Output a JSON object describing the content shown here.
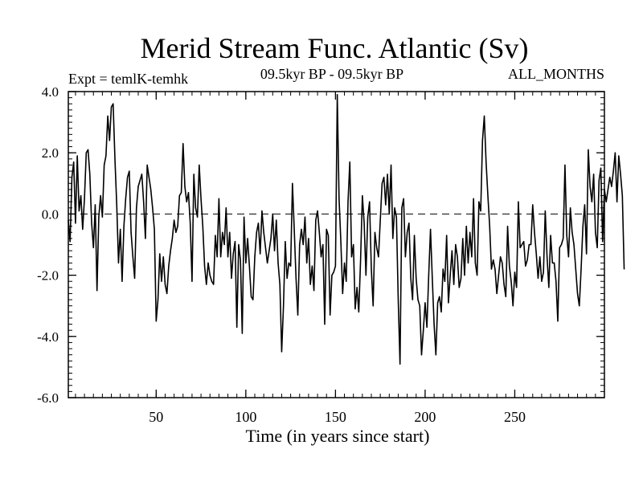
{
  "chart_data": {
    "type": "line",
    "title": "Merid Stream Func. Atlantic (Sv)",
    "subtitle": "09.5kyr BP - 09.5kyr BP",
    "experiment": "Expt = temlK-temhk",
    "period": "ALL_MONTHS",
    "xlabel": "Time (in years since start)",
    "ylabel": "",
    "xlim": [
      1,
      300
    ],
    "ylim": [
      -6.0,
      4.0
    ],
    "x_ticks": [
      50,
      100,
      150,
      200,
      250
    ],
    "x_tick_labels": [
      "50",
      "100",
      "150",
      "200",
      "250"
    ],
    "y_ticks": [
      -6.0,
      -4.0,
      -2.0,
      0.0,
      2.0,
      4.0
    ],
    "y_tick_labels": [
      "-6.0",
      "-4.0",
      "-2.0",
      "0.0",
      "2.0",
      "4.0"
    ],
    "zero_line": {
      "value": 0.0,
      "style": "dashed"
    },
    "grid": false,
    "series": [
      {
        "name": "Merid Stream Func. Atlantic",
        "color": "#000000",
        "x_start": 1,
        "x_step": 1,
        "values": [
          -0.2,
          -0.9,
          1.2,
          1.7,
          -0.3,
          1.9,
          0.1,
          0.6,
          -0.5,
          0.5,
          2.0,
          2.1,
          1.3,
          -0.3,
          -1.1,
          0.3,
          -2.5,
          -0.1,
          0.6,
          -0.1,
          1.6,
          1.9,
          3.2,
          2.4,
          3.5,
          3.6,
          1.8,
          0.3,
          -1.6,
          -0.5,
          -2.2,
          -0.4,
          0.5,
          1.2,
          1.4,
          -0.6,
          -1.4,
          -2.1,
          0.2,
          0.9,
          1.1,
          1.3,
          0.4,
          -0.8,
          1.6,
          1.2,
          0.8,
          0.2,
          -0.5,
          -3.5,
          -2.8,
          -1.3,
          -2.2,
          -1.4,
          -2.3,
          -2.6,
          -1.7,
          -1.2,
          -0.8,
          -0.2,
          -0.6,
          -0.4,
          0.6,
          0.7,
          2.3,
          0.9,
          0.4,
          0.7,
          -0.3,
          -2.2,
          1.3,
          0.2,
          -0.1,
          1.6,
          0.5,
          -0.4,
          -1.7,
          -2.3,
          -1.6,
          -2.0,
          -2.2,
          -2.3,
          -0.7,
          -1.4,
          0.5,
          -1.4,
          -0.6,
          -1.0,
          0.2,
          -1.4,
          -0.6,
          -2.1,
          -1.3,
          -0.9,
          -3.7,
          -1.0,
          -1.5,
          -3.9,
          -0.1,
          -1.6,
          -0.8,
          -1.7,
          -2.7,
          -2.8,
          -1.4,
          -0.6,
          -0.3,
          -1.3,
          0.1,
          -0.6,
          -1.1,
          -1.6,
          -1.2,
          -0.8,
          0.0,
          -1.2,
          -0.2,
          -1.6,
          -2.3,
          -4.5,
          -3.0,
          -0.9,
          -2.1,
          -1.6,
          -1.7,
          1.0,
          -0.5,
          -2.1,
          -3.3,
          -1.0,
          -0.5,
          -1.0,
          -0.1,
          -1.6,
          -0.8,
          -2.3,
          -1.7,
          -2.5,
          -0.2,
          0.1,
          -0.6,
          -1.4,
          -1.0,
          -3.6,
          -0.5,
          -0.7,
          -3.3,
          -2.0,
          -1.9,
          -1.7,
          3.9,
          0.5,
          -0.9,
          -2.6,
          -1.6,
          -2.2,
          0.4,
          1.7,
          -1.4,
          -1.0,
          -3.1,
          -2.4,
          -3.2,
          -1.5,
          0.6,
          -0.3,
          -2.0,
          -0.1,
          0.4,
          -1.8,
          -3.0,
          -0.6,
          -1.1,
          -1.4,
          -0.2,
          1.0,
          1.2,
          0.3,
          1.3,
          0.0,
          1.6,
          -0.8,
          0.2,
          -0.1,
          -2.8,
          -4.9,
          0.2,
          0.5,
          -1.4,
          -0.6,
          -0.3,
          -2.1,
          -2.8,
          -0.7,
          -2.1,
          -2.8,
          -3.0,
          -4.6,
          -3.8,
          -2.9,
          -3.7,
          -2.0,
          -0.5,
          -2.1,
          -3.6,
          -4.6,
          -2.9,
          -2.7,
          -3.2,
          -1.8,
          -2.2,
          -0.7,
          -2.9,
          -2.0,
          -1.2,
          -2.3,
          -1.0,
          -1.4,
          -2.4,
          -2.1,
          -0.8,
          -2.0,
          -0.4,
          -1.6,
          -0.6,
          -1.4,
          0.5,
          -1.6,
          -2.0,
          0.4,
          0.1,
          2.4,
          3.2,
          1.7,
          0.6,
          -0.4,
          -1.8,
          -1.5,
          -1.8,
          -2.6,
          -2.0,
          -1.4,
          -1.6,
          -2.3,
          -2.7,
          -0.4,
          -1.7,
          -2.2,
          -3.0,
          -1.9,
          -2.4,
          0.4,
          -1.1,
          -1.0,
          -0.9,
          -1.7,
          -1.5,
          -1.0,
          -1.0,
          0.3,
          -0.6,
          -1.3,
          -2.1,
          -1.4,
          -2.2,
          -1.9,
          0.1,
          -1.4,
          -2.4,
          -0.7,
          -1.6,
          -1.6,
          -2.2,
          -3.5,
          -1.1,
          -1.0,
          -0.8,
          1.6,
          -0.7,
          -1.4,
          0.2,
          -0.6,
          -1.0,
          -1.8,
          -2.6,
          -3.0,
          -1.8,
          -0.4,
          0.3,
          -1.3,
          2.1,
          0.9,
          0.4,
          1.3,
          -0.6,
          -1.1,
          1.1,
          1.5,
          -0.9,
          0.8,
          0.4,
          0.8,
          1.2,
          0.9,
          1.4,
          2.0,
          0.4,
          1.9,
          1.3,
          0.6,
          -1.8
        ]
      }
    ]
  }
}
